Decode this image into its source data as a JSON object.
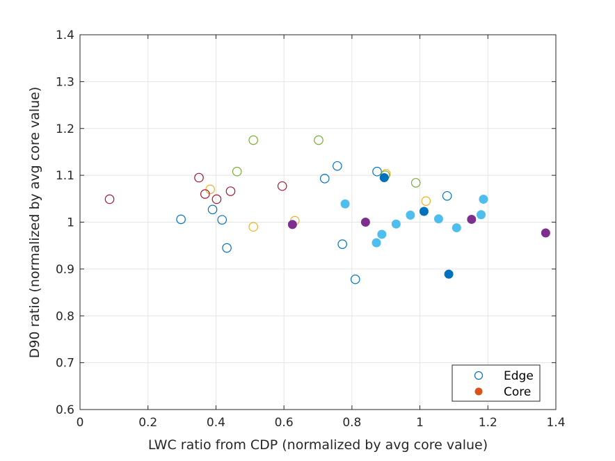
{
  "chart_data": {
    "type": "scatter",
    "title": "",
    "xlabel": "LWC ratio from CDP (normalized by avg core value)",
    "ylabel": "D90 ratio (normalized by avg core value)",
    "xlim": [
      0,
      1.4
    ],
    "ylim": [
      0.6,
      1.4
    ],
    "xticks": [
      "0",
      "0.2",
      "0.4",
      "0.6",
      "0.8",
      "1",
      "1.2",
      "1.4"
    ],
    "yticks": [
      "0.6",
      "0.7",
      "0.8",
      "0.9",
      "1",
      "1.1",
      "1.2",
      "1.3",
      "1.4"
    ],
    "grid": true,
    "legend_placement": "bottom-right",
    "legend": [
      {
        "label": "Edge",
        "marker": "open-circle",
        "color": "#0072BD"
      },
      {
        "label": "Core",
        "marker": "filled-circle",
        "color": "#D95319"
      }
    ],
    "series": [
      {
        "marker": "open-circle",
        "color": "#0072BD",
        "points": [
          [
            0.297,
            1.006
          ],
          [
            0.39,
            1.027
          ],
          [
            0.418,
            1.005
          ],
          [
            0.432,
            0.945
          ],
          [
            0.72,
            1.093
          ],
          [
            0.757,
            1.12
          ],
          [
            0.772,
            0.953
          ],
          [
            0.81,
            0.878
          ],
          [
            0.874,
            1.108
          ],
          [
            1.08,
            1.056
          ]
        ]
      },
      {
        "marker": "open-circle",
        "color": "#EDB120",
        "points": [
          [
            0.383,
            1.07
          ],
          [
            0.51,
            0.99
          ],
          [
            0.632,
            1.003
          ],
          [
            0.9,
            1.103
          ],
          [
            1.018,
            1.045
          ]
        ]
      },
      {
        "marker": "open-circle",
        "color": "#77AC30",
        "points": [
          [
            0.462,
            1.108
          ],
          [
            0.51,
            1.175
          ],
          [
            0.702,
            1.175
          ],
          [
            0.898,
            1.1
          ],
          [
            0.988,
            1.084
          ]
        ]
      },
      {
        "marker": "open-circle",
        "color": "#A2142F",
        "points": [
          [
            0.087,
            1.049
          ],
          [
            0.35,
            1.095
          ],
          [
            0.368,
            1.06
          ],
          [
            0.402,
            1.049
          ],
          [
            0.443,
            1.066
          ],
          [
            0.595,
            1.077
          ]
        ]
      },
      {
        "marker": "filled-circle",
        "color": "#4DBEEE",
        "points": [
          [
            0.78,
            1.039
          ],
          [
            0.872,
            0.956
          ],
          [
            0.888,
            0.974
          ],
          [
            0.93,
            0.996
          ],
          [
            0.972,
            1.015
          ],
          [
            1.055,
            1.007
          ],
          [
            1.108,
            0.988
          ],
          [
            1.18,
            1.016
          ],
          [
            1.187,
            1.049
          ]
        ]
      },
      {
        "marker": "filled-circle",
        "color": "#0072BD",
        "points": [
          [
            0.895,
            1.095
          ],
          [
            1.012,
            1.023
          ],
          [
            1.085,
            0.889
          ]
        ]
      },
      {
        "marker": "filled-circle",
        "color": "#7E2F8E",
        "points": [
          [
            0.625,
            0.995
          ],
          [
            0.84,
            1.0
          ],
          [
            1.152,
            1.006
          ],
          [
            1.37,
            0.977
          ]
        ]
      }
    ]
  }
}
